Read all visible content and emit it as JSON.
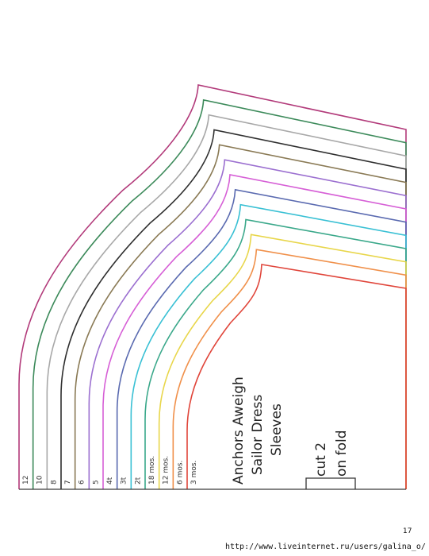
{
  "pattern": {
    "title_lines": [
      "Anchors Aweigh",
      "Sailor Dress",
      "Sleeves"
    ],
    "cut_lines": [
      "cut 2",
      "on fold"
    ],
    "sizes": [
      {
        "label": "12",
        "color": "#b23a7a"
      },
      {
        "label": "10",
        "color": "#3c8a5a"
      },
      {
        "label": "8",
        "color": "#a8a8a8"
      },
      {
        "label": "7",
        "color": "#2e2e2e"
      },
      {
        "label": "6",
        "color": "#8a7a55"
      },
      {
        "label": "5",
        "color": "#9b6fd0"
      },
      {
        "label": "4t",
        "color": "#d65fd6"
      },
      {
        "label": "3t",
        "color": "#5a6ab0"
      },
      {
        "label": "2t",
        "color": "#39c0d4"
      },
      {
        "label": "18 mos.",
        "color": "#3aa88a"
      },
      {
        "label": "12 mos.",
        "color": "#e8d64a"
      },
      {
        "label": "6 mos.",
        "color": "#f0904a"
      },
      {
        "label": "3 mos.",
        "color": "#e0453a"
      }
    ]
  },
  "footer": {
    "page_number": "17",
    "watermark": "http://www.liveinternet.ru/users/galina_o/"
  }
}
